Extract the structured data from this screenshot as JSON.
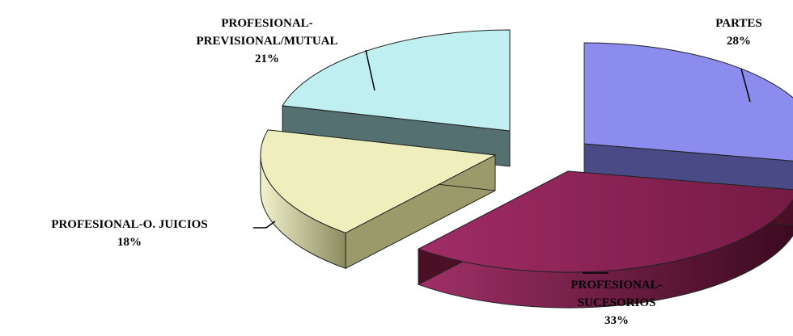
{
  "chart_data": {
    "type": "pie",
    "style": "3d-exploded",
    "title": "",
    "categories": [
      "PARTES",
      "PROFESIONAL-SUCESORIOS",
      "PROFESIONAL-O. JUICIOS",
      "PROFESIONAL-PREVISIONAL/MUTUAL"
    ],
    "values": [
      28,
      33,
      18,
      21
    ],
    "unit": "%",
    "colors": [
      "#8c8cee",
      "#8e2458",
      "#efefbd",
      "#bfeff0"
    ],
    "side_colors": [
      "#4a4a86",
      "#4c1026",
      "#9a9a6a",
      "#547070"
    ],
    "labels": [
      {
        "lines": [
          "PARTES",
          "28%"
        ]
      },
      {
        "lines": [
          "PROFESIONAL-",
          "SUCESORIOS",
          "33%"
        ]
      },
      {
        "lines": [
          "PROFESIONAL-O.  JUICIOS",
          "18%"
        ]
      },
      {
        "lines": [
          "PROFESIONAL-",
          "PREVISIONAL/MUTUAL",
          "21%"
        ]
      }
    ]
  }
}
